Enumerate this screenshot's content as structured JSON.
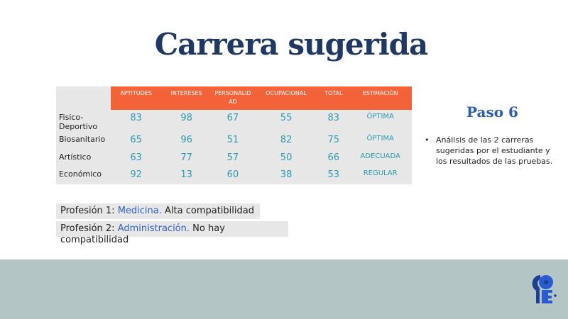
{
  "title": "Carrera sugerida",
  "table": {
    "headers": [
      "APTITUDES",
      "INTERESES",
      "PERSONALIDAD",
      "OCUPACIONAL",
      "TOTAL",
      "ESTIMACIÓN"
    ],
    "rows": [
      {
        "label": "Fisico-Deportivo",
        "values": [
          "83",
          "98",
          "67",
          "55",
          "83"
        ],
        "estimacion": "ÓPTIMA"
      },
      {
        "label": "Biosanitario",
        "values": [
          "65",
          "96",
          "51",
          "82",
          "75"
        ],
        "estimacion": "ÓPTIMA"
      },
      {
        "label": "Artístico",
        "values": [
          "63",
          "77",
          "57",
          "50",
          "66"
        ],
        "estimacion": "ADECUADA"
      },
      {
        "label": "Económico",
        "values": [
          "92",
          "13",
          "60",
          "38",
          "53"
        ],
        "estimacion": "REGULAR"
      }
    ]
  },
  "professions": [
    {
      "prefix": "Profesión 1: ",
      "career": "Medicina.",
      "result": " Alta compatibilidad"
    },
    {
      "prefix": "Profesión 2: ",
      "career": "Administración.",
      "result": " No hay compatibilidad"
    }
  ],
  "step": {
    "title": "Paso 6",
    "bullet": "Análisis de las 2 carreras sugeridas por el estudiante y los resultados de las pruebas."
  },
  "colors": {
    "header": "#f4623a",
    "values": "#2e9bb0",
    "title": "#1f3864",
    "band": "#b4c5c6"
  },
  "logo": {
    "icon": "key-logo-icon"
  }
}
